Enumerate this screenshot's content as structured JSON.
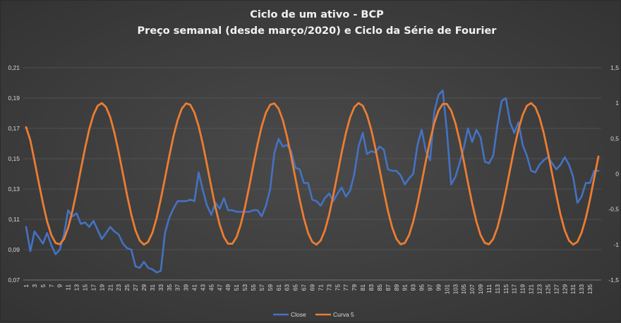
{
  "chart_data": {
    "type": "line",
    "title": "Ciclo de um ativo - BCP",
    "subtitle": "Preço semanal (desde março/2020) e Ciclo da Série de Fourier",
    "xlabel": "",
    "ylabel": "",
    "x": [
      1,
      2,
      3,
      4,
      5,
      6,
      7,
      8,
      9,
      10,
      11,
      12,
      13,
      14,
      15,
      16,
      17,
      18,
      19,
      20,
      21,
      22,
      23,
      24,
      25,
      26,
      27,
      28,
      29,
      30,
      31,
      32,
      33,
      34,
      35,
      36,
      37,
      38,
      39,
      40,
      41,
      42,
      43,
      44,
      45,
      46,
      47,
      48,
      49,
      50,
      51,
      52,
      53,
      54,
      55,
      56,
      57,
      58,
      59,
      60,
      61,
      62,
      63,
      64,
      65,
      66,
      67,
      68,
      69,
      70,
      71,
      72,
      73,
      74,
      75,
      76,
      77,
      78,
      79,
      80,
      81,
      82,
      83,
      84,
      85,
      86,
      87,
      88,
      89,
      90,
      91,
      92,
      93,
      94,
      95,
      96,
      97,
      98,
      99,
      100,
      101,
      102,
      103,
      104,
      105,
      106,
      107,
      108,
      109,
      110,
      111,
      112,
      113,
      114,
      115,
      116,
      117,
      118,
      119,
      120,
      121,
      122,
      123,
      124,
      125,
      126,
      127,
      128,
      129,
      130,
      131,
      132,
      133,
      134,
      135,
      136,
      137
    ],
    "x_tick_labels": [
      "1",
      "3",
      "5",
      "7",
      "9",
      "11",
      "13",
      "15",
      "17",
      "19",
      "21",
      "23",
      "25",
      "27",
      "29",
      "31",
      "33",
      "35",
      "37",
      "39",
      "41",
      "43",
      "45",
      "47",
      "49",
      "51",
      "53",
      "55",
      "57",
      "59",
      "61",
      "63",
      "65",
      "67",
      "69",
      "71",
      "73",
      "75",
      "77",
      "79",
      "81",
      "83",
      "85",
      "87",
      "89",
      "91",
      "93",
      "95",
      "97",
      "99",
      "101",
      "103",
      "105",
      "107",
      "109",
      "111",
      "113",
      "115",
      "117",
      "119",
      "121",
      "123",
      "125",
      "127",
      "129",
      "131",
      "133",
      "135"
    ],
    "y_left_ticks": [
      "0,07",
      "0,09",
      "0,11",
      "0,13",
      "0,15",
      "0,17",
      "0,19",
      "0,21"
    ],
    "y_left_range": [
      0.07,
      0.21
    ],
    "y_right_ticks": [
      "-1,5",
      "-1",
      "-0,5",
      "0",
      "0,5",
      "1",
      "1,5"
    ],
    "y_right_range": [
      -1.5,
      1.5
    ],
    "grid": true,
    "legend_position": "bottom-center",
    "series": [
      {
        "name": "Close",
        "axis": "left",
        "color": "#4472c4",
        "values": [
          0.105,
          0.089,
          0.102,
          0.098,
          0.094,
          0.101,
          0.093,
          0.087,
          0.09,
          0.1,
          0.116,
          0.112,
          0.114,
          0.107,
          0.108,
          0.105,
          0.109,
          0.103,
          0.097,
          0.101,
          0.105,
          0.102,
          0.1,
          0.094,
          0.091,
          0.09,
          0.079,
          0.078,
          0.082,
          0.078,
          0.077,
          0.075,
          0.076,
          0.101,
          0.111,
          0.117,
          0.122,
          0.122,
          0.122,
          0.123,
          0.122,
          0.141,
          0.129,
          0.119,
          0.113,
          0.121,
          0.117,
          0.124,
          0.116,
          0.116,
          0.115,
          0.115,
          0.115,
          0.115,
          0.116,
          0.116,
          0.112,
          0.119,
          0.13,
          0.154,
          0.163,
          0.158,
          0.159,
          0.155,
          0.144,
          0.143,
          0.134,
          0.134,
          0.123,
          0.122,
          0.119,
          0.124,
          0.127,
          0.122,
          0.127,
          0.131,
          0.125,
          0.129,
          0.14,
          0.158,
          0.167,
          0.153,
          0.155,
          0.154,
          0.158,
          0.156,
          0.143,
          0.142,
          0.142,
          0.139,
          0.133,
          0.137,
          0.14,
          0.159,
          0.169,
          0.155,
          0.149,
          0.181,
          0.192,
          0.195,
          0.168,
          0.133,
          0.138,
          0.147,
          0.157,
          0.17,
          0.161,
          0.169,
          0.164,
          0.148,
          0.147,
          0.152,
          0.172,
          0.188,
          0.19,
          0.174,
          0.167,
          0.174,
          0.159,
          0.152,
          0.142,
          0.141,
          0.146,
          0.149,
          0.151,
          0.147,
          0.143,
          0.146,
          0.151,
          0.146,
          0.138,
          0.121,
          0.125,
          0.134,
          0.134,
          0.142,
          0.142
        ]
      },
      {
        "name": "Curva 5",
        "axis": "right",
        "color": "#ed7d31",
        "period": 20.4,
        "phase_x": 18.9,
        "amplitude": 1.0,
        "initial_value": 0.66
      }
    ]
  }
}
